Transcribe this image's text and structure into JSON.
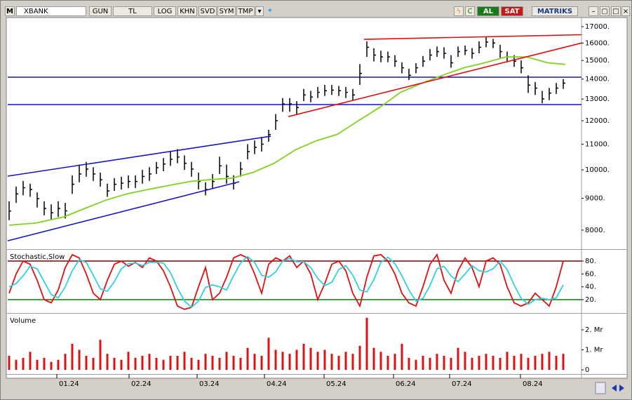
{
  "toolbar": {
    "logo": "M",
    "symbol": "XBANK",
    "buttons": [
      "GUN",
      "TL",
      "LOG",
      "KHN",
      "SVD",
      "SYM",
      "TMP"
    ],
    "buy": "AL",
    "sell": "SAT",
    "brand": "MATRIKS"
  },
  "chart_data": [
    {
      "type": "ohlc",
      "log_scale": true,
      "color": "#000000",
      "x": [
        0,
        1,
        2,
        3,
        4,
        5,
        6,
        7,
        8,
        9,
        10,
        11,
        12,
        13,
        14,
        15,
        16,
        17,
        18,
        19,
        20,
        21,
        22,
        23,
        24,
        25,
        26,
        27,
        28,
        29,
        30,
        31,
        32,
        33,
        34,
        35,
        36,
        37,
        38,
        39,
        40,
        41,
        42,
        43,
        44,
        45,
        46,
        47,
        48,
        49,
        50,
        51,
        52,
        53,
        54,
        55,
        56,
        57,
        58,
        59,
        60,
        61,
        62,
        63,
        64,
        65,
        66,
        67,
        68,
        69,
        70,
        71,
        72,
        73,
        74,
        75,
        76,
        77,
        78,
        79
      ],
      "high": [
        8900,
        9400,
        9600,
        9500,
        9200,
        8900,
        8800,
        8900,
        8850,
        9800,
        10200,
        10300,
        10100,
        9900,
        9500,
        9700,
        9750,
        9800,
        9800,
        10000,
        10100,
        10300,
        10450,
        10700,
        10800,
        10550,
        10300,
        9900,
        9550,
        9850,
        10500,
        10200,
        9800,
        10300,
        11000,
        11150,
        11300,
        11600,
        12300,
        13050,
        13050,
        12900,
        13500,
        13400,
        13600,
        13700,
        13700,
        13650,
        13600,
        13500,
        14800,
        16100,
        15700,
        15550,
        15500,
        15300,
        14900,
        14550,
        14850,
        15250,
        15650,
        15800,
        15750,
        15300,
        15800,
        15850,
        15700,
        16100,
        16350,
        16250,
        15900,
        15500,
        15300,
        15000,
        14200,
        13850,
        13400,
        13550,
        13800,
        14000
      ],
      "low": [
        8300,
        8850,
        9100,
        9050,
        8700,
        8450,
        8300,
        8400,
        8350,
        9150,
        9550,
        9750,
        9600,
        9400,
        9050,
        9250,
        9300,
        9350,
        9350,
        9500,
        9600,
        9850,
        9950,
        10150,
        10250,
        10000,
        9750,
        9300,
        9100,
        9350,
        9850,
        9500,
        9300,
        9750,
        10400,
        10600,
        10700,
        11100,
        11600,
        12400,
        12400,
        12300,
        12900,
        12850,
        13050,
        13150,
        13200,
        13150,
        13050,
        12950,
        13700,
        15200,
        14950,
        14900,
        14900,
        14650,
        14300,
        13950,
        14300,
        14650,
        15000,
        15200,
        15100,
        14600,
        15200,
        15300,
        15100,
        15400,
        15750,
        15700,
        15150,
        14900,
        14650,
        14300,
        13300,
        13200,
        12800,
        12950,
        13250,
        13500
      ],
      "close": [
        8585,
        9150,
        9360,
        9300,
        8990,
        8670,
        8530,
        8670,
        8590,
        9480,
        9850,
        10030,
        9850,
        9640,
        9250,
        9480,
        9520,
        9580,
        9580,
        9760,
        9850,
        10080,
        10220,
        10400,
        10490,
        10250,
        10030,
        9580,
        9300,
        9580,
        10150,
        9760,
        9520,
        10030,
        10700,
        10870,
        11000,
        11400,
        12000,
        12770,
        12770,
        12600,
        13200,
        13100,
        13330,
        13410,
        13440,
        13410,
        13330,
        13200,
        14300,
        15750,
        15300,
        15200,
        15200,
        14960,
        14600,
        14200,
        14600,
        14960,
        15300,
        15500,
        15400,
        14870,
        15500,
        15570,
        15400,
        15750,
        16060,
        16000,
        15500,
        15200,
        14960,
        14600,
        13690,
        13540,
        13010,
        13290,
        13540,
        13790
      ],
      "overlays": [
        {
          "color": "#7fd320",
          "x": [
            0,
            3.8,
            7.8,
            10.8,
            13.8,
            16.8,
            19.8,
            22.8,
            25.8,
            28.8,
            31.8,
            34.8,
            37.8,
            40.8,
            43.8,
            46.8,
            49.8,
            52.8,
            55.8,
            58.8,
            61.8,
            64.8,
            67.8,
            70.8,
            73.8,
            76.8,
            79.3
          ],
          "values": [
            8146,
            8210,
            8400,
            8670,
            8940,
            9150,
            9300,
            9440,
            9580,
            9650,
            9700,
            9910,
            10250,
            10770,
            11140,
            11410,
            12000,
            12600,
            13330,
            13780,
            14200,
            14600,
            14870,
            15200,
            15200,
            14870,
            14780
          ]
        }
      ],
      "trendlines": [
        {
          "color": "#1414c8",
          "x": [
            -0.2,
            37.3
          ],
          "values": [
            9770,
            11330
          ]
        },
        {
          "color": "#1414c8",
          "x": [
            -0.2,
            32.8
          ],
          "values": [
            7690,
            9570
          ]
        },
        {
          "color": "#e01010",
          "x": [
            39.8,
            81.6
          ],
          "values": [
            12180,
            16000
          ]
        },
        {
          "color": "#e01010",
          "x": [
            50.6,
            81.6
          ],
          "values": [
            16220,
            16500
          ]
        }
      ],
      "hlines": [
        {
          "color": "#1414c8",
          "value": 14100
        },
        {
          "color": "#1414c8",
          "value": 12740
        }
      ],
      "xlim": [
        -0.2,
        81.6
      ],
      "ylim": [
        7475,
        17540
      ],
      "yticks": [
        {
          "value": 8000,
          "label": "8000."
        },
        {
          "value": 9000,
          "label": "9000."
        },
        {
          "value": 10000,
          "label": "10000."
        },
        {
          "value": 11000,
          "label": "11000."
        },
        {
          "value": 12000,
          "label": "12000."
        },
        {
          "value": 13000,
          "label": "13000."
        },
        {
          "value": 14000,
          "label": "14000."
        },
        {
          "value": 15000,
          "label": "15000."
        },
        {
          "value": 16000,
          "label": "16000."
        },
        {
          "value": 17000,
          "label": "17000."
        }
      ]
    },
    {
      "type": "line",
      "title": "Stochastic,Slow",
      "x": [
        0,
        1,
        2,
        3,
        4,
        5,
        6,
        7,
        8,
        9,
        10,
        11,
        12,
        13,
        14,
        15,
        16,
        17,
        18,
        19,
        20,
        21,
        22,
        23,
        24,
        25,
        26,
        27,
        28,
        29,
        30,
        31,
        32,
        33,
        34,
        35,
        36,
        37,
        38,
        39,
        40,
        41,
        42,
        43,
        44,
        45,
        46,
        47,
        48,
        49,
        50,
        51,
        52,
        53,
        54,
        55,
        56,
        57,
        58,
        59,
        60,
        61,
        62,
        63,
        64,
        65,
        66,
        67,
        68,
        69,
        70,
        71,
        72,
        73,
        74,
        75,
        76,
        77,
        78,
        79
      ],
      "series": [
        {
          "color": "#e01010",
          "values": [
            30,
            60,
            80,
            75,
            50,
            20,
            15,
            35,
            70,
            90,
            85,
            60,
            30,
            20,
            50,
            75,
            80,
            72,
            78,
            70,
            85,
            80,
            65,
            40,
            10,
            5,
            8,
            40,
            70,
            20,
            30,
            55,
            85,
            90,
            85,
            60,
            30,
            75,
            85,
            80,
            88,
            70,
            80,
            60,
            20,
            45,
            75,
            80,
            65,
            30,
            10,
            55,
            88,
            90,
            80,
            60,
            30,
            15,
            10,
            40,
            75,
            90,
            50,
            30,
            65,
            85,
            70,
            40,
            80,
            85,
            75,
            40,
            15,
            10,
            15,
            30,
            20,
            10,
            40,
            80
          ]
        },
        {
          "color": "#30d0e0",
          "values": [
            40,
            45,
            57,
            72,
            68,
            48,
            28,
            23,
            40,
            65,
            82,
            78,
            58,
            37,
            33,
            48,
            68,
            76,
            77,
            73,
            78,
            78,
            77,
            62,
            38,
            18,
            8,
            18,
            39,
            43,
            40,
            35,
            57,
            77,
            87,
            78,
            58,
            55,
            63,
            80,
            84,
            79,
            79,
            70,
            53,
            42,
            47,
            67,
            73,
            58,
            35,
            32,
            51,
            78,
            86,
            76,
            57,
            35,
            18,
            22,
            42,
            68,
            72,
            57,
            48,
            60,
            73,
            65,
            63,
            68,
            80,
            67,
            43,
            22,
            13,
            20,
            22,
            20,
            23,
            43
          ]
        }
      ],
      "hlines": [
        {
          "color": "#800000",
          "value": 80
        },
        {
          "color": "#008000",
          "value": 20
        }
      ],
      "xlim": [
        -0.2,
        81.6
      ],
      "ylim": [
        1.5,
        96.4
      ],
      "yticks": [
        {
          "value": 20,
          "label": "20."
        },
        {
          "value": 40,
          "label": "40."
        },
        {
          "value": 60,
          "label": "60."
        },
        {
          "value": 80,
          "label": "80."
        }
      ]
    },
    {
      "type": "bar",
      "title": "Volume",
      "color": "#e01010",
      "x": [
        0,
        1,
        2,
        3,
        4,
        5,
        6,
        7,
        8,
        9,
        10,
        11,
        12,
        13,
        14,
        15,
        16,
        17,
        18,
        19,
        20,
        21,
        22,
        23,
        24,
        25,
        26,
        27,
        28,
        29,
        30,
        31,
        32,
        33,
        34,
        35,
        36,
        37,
        38,
        39,
        40,
        41,
        42,
        43,
        44,
        45,
        46,
        47,
        48,
        49,
        50,
        51,
        52,
        53,
        54,
        55,
        56,
        57,
        58,
        59,
        60,
        61,
        62,
        63,
        64,
        65,
        66,
        67,
        68,
        69,
        70,
        71,
        72,
        73,
        74,
        75,
        76,
        77,
        78,
        79
      ],
      "values": [
        0.7,
        0.5,
        0.6,
        0.9,
        0.5,
        0.6,
        0.4,
        0.5,
        0.8,
        1.3,
        1.0,
        0.7,
        0.6,
        1.5,
        0.8,
        0.6,
        0.5,
        0.9,
        0.6,
        0.7,
        0.8,
        0.6,
        0.5,
        0.7,
        0.7,
        0.9,
        0.6,
        0.5,
        0.8,
        0.7,
        0.6,
        0.9,
        0.7,
        0.6,
        1.1,
        0.8,
        0.7,
        1.6,
        1.0,
        0.9,
        0.8,
        1.0,
        1.3,
        1.1,
        0.9,
        1.0,
        0.8,
        0.7,
        0.9,
        0.8,
        1.2,
        2.6,
        1.1,
        0.9,
        0.7,
        0.8,
        1.3,
        0.6,
        0.5,
        0.7,
        0.6,
        0.8,
        0.7,
        0.6,
        1.1,
        0.9,
        0.6,
        0.7,
        0.8,
        0.7,
        0.6,
        0.9,
        0.7,
        0.8,
        0.6,
        0.7,
        0.8,
        0.9,
        0.7,
        0.8
      ],
      "xlim": [
        -0.2,
        81.6
      ],
      "ylim": [
        -0.14,
        2.77
      ],
      "yticks": [
        0,
        {
          "value": 1,
          "label": "1. Mr"
        },
        {
          "value": 2,
          "label": "2. Mr"
        }
      ],
      "xticks": [
        {
          "value": 6.8,
          "label": "01.24"
        },
        {
          "value": 17.1,
          "label": "02.24"
        },
        {
          "value": 26.8,
          "label": "03.24"
        },
        {
          "value": 36.4,
          "label": "04.24"
        },
        {
          "value": 44.9,
          "label": "05.24"
        },
        {
          "value": 54.8,
          "label": "06.24"
        },
        {
          "value": 62.8,
          "label": "07.24"
        },
        {
          "value": 72.9,
          "label": "08.24"
        }
      ]
    }
  ]
}
